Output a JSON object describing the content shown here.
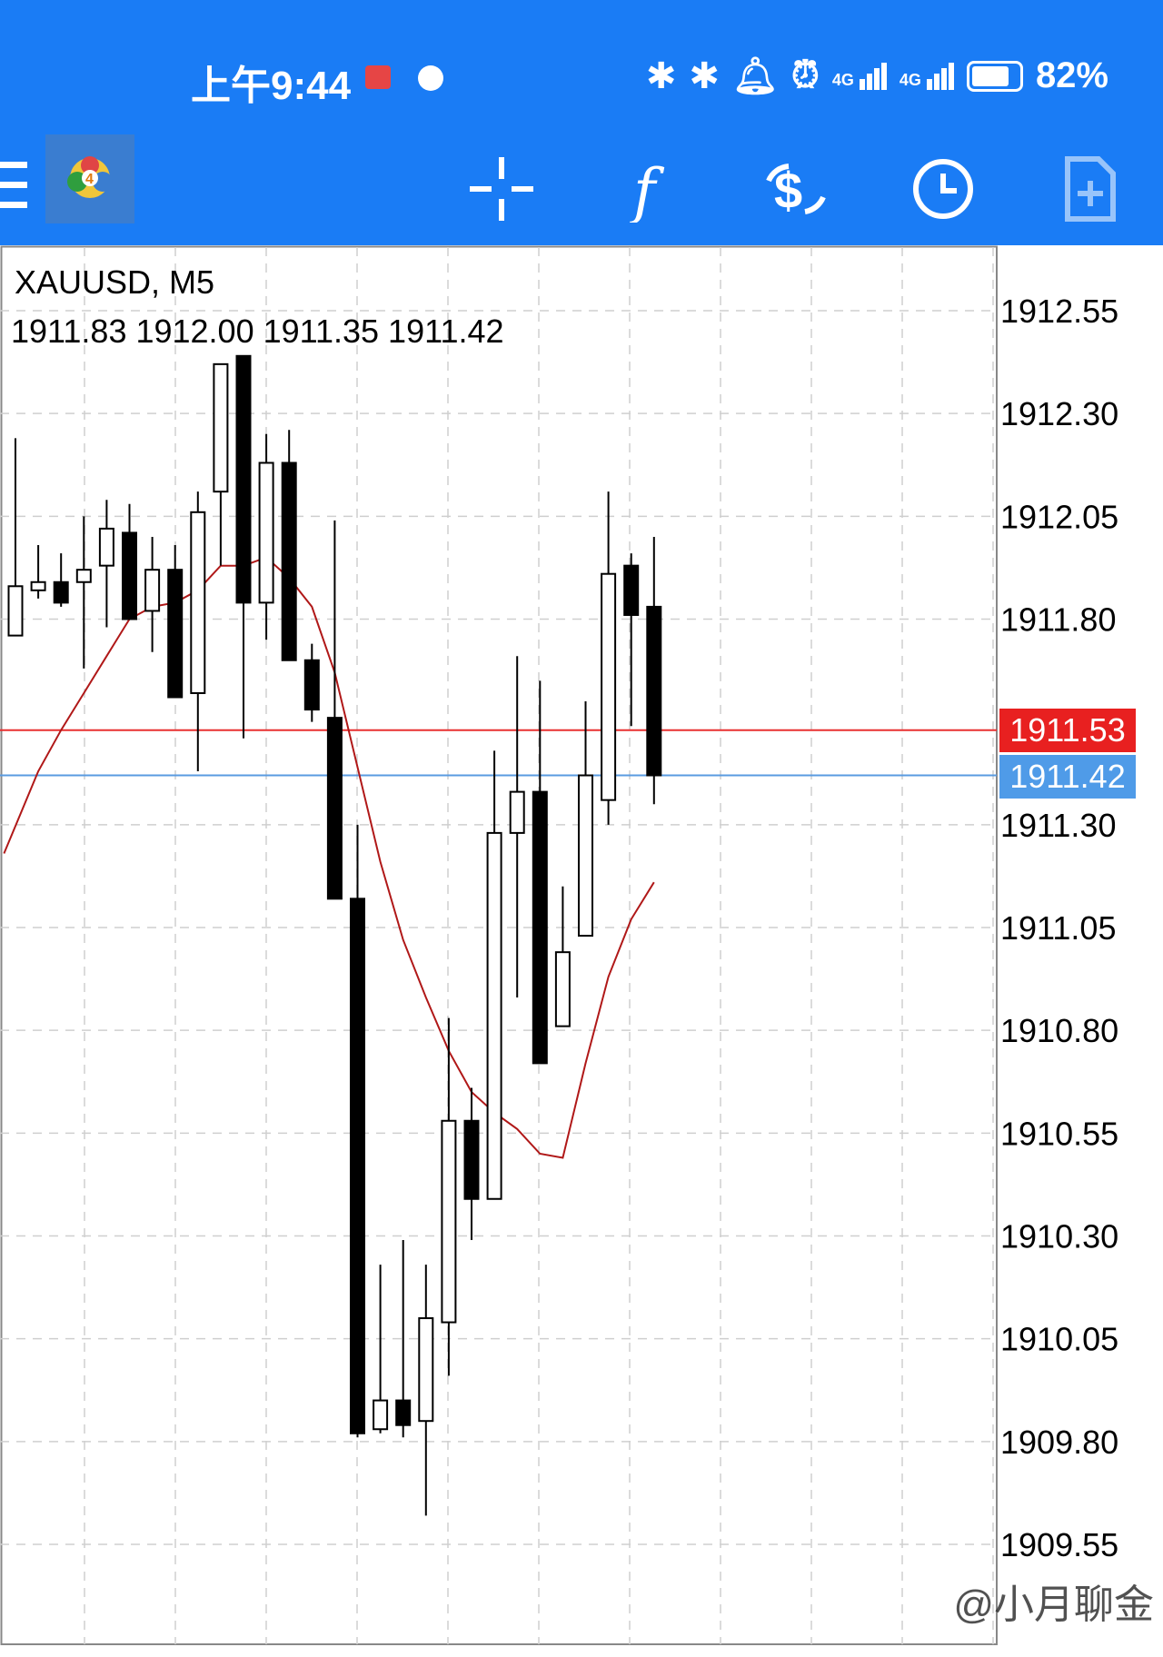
{
  "status_bar": {
    "time": "上午9:44",
    "battery": "82%",
    "network_1": "4G",
    "network_2": "4G"
  },
  "toolbar": {
    "menu_icon": "menu-icon",
    "app_icon": "metatrader-icon",
    "buttons": [
      "crosshair-icon",
      "indicators-icon",
      "symbols-icon",
      "timeframe-clock-icon",
      "new-order-icon"
    ]
  },
  "chart_header": {
    "symbol": "XAUUSD, M5",
    "ohlc": "1911.83 1912.00 1911.35 1911.42"
  },
  "price_tags": {
    "ask": "1911.53",
    "bid": "1911.42"
  },
  "colors": {
    "brand_blue": "#1a7cf5",
    "ask_line": "#e83030",
    "bid_line": "#5a9be0",
    "ma_line": "#b01818"
  },
  "watermark": "@小月聊金",
  "chart_data": {
    "type": "candlestick",
    "symbol": "XAUUSD",
    "timeframe": "M5",
    "ylim": [
      1909.42,
      1912.67
    ],
    "y_ticks": [
      "1912.55",
      "1912.30",
      "1912.05",
      "1911.80",
      "1911.30",
      "1911.05",
      "1910.80",
      "1910.55",
      "1910.30",
      "1910.05",
      "1909.80",
      "1909.55"
    ],
    "grid": true,
    "ask": 1911.53,
    "bid": 1911.42,
    "candles": [
      {
        "o": 1911.76,
        "h": 1912.24,
        "l": 1911.76,
        "c": 1911.88
      },
      {
        "o": 1911.87,
        "h": 1911.98,
        "l": 1911.85,
        "c": 1911.89
      },
      {
        "o": 1911.89,
        "h": 1911.96,
        "l": 1911.83,
        "c": 1911.84
      },
      {
        "o": 1911.89,
        "h": 1912.05,
        "l": 1911.68,
        "c": 1911.92
      },
      {
        "o": 1911.93,
        "h": 1912.09,
        "l": 1911.78,
        "c": 1912.02
      },
      {
        "o": 1912.01,
        "h": 1912.08,
        "l": 1911.8,
        "c": 1911.8
      },
      {
        "o": 1911.82,
        "h": 1912.0,
        "l": 1911.72,
        "c": 1911.92
      },
      {
        "o": 1911.92,
        "h": 1911.98,
        "l": 1911.61,
        "c": 1911.61
      },
      {
        "o": 1911.62,
        "h": 1912.11,
        "l": 1911.43,
        "c": 1912.06
      },
      {
        "o": 1912.11,
        "h": 1912.42,
        "l": 1911.93,
        "c": 1912.42
      },
      {
        "o": 1912.44,
        "h": 1912.44,
        "l": 1911.51,
        "c": 1911.84
      },
      {
        "o": 1911.84,
        "h": 1912.25,
        "l": 1911.75,
        "c": 1912.18
      },
      {
        "o": 1912.18,
        "h": 1912.26,
        "l": 1911.7,
        "c": 1911.7
      },
      {
        "o": 1911.7,
        "h": 1911.74,
        "l": 1911.55,
        "c": 1911.58
      },
      {
        "o": 1911.56,
        "h": 1912.04,
        "l": 1911.12,
        "c": 1911.12
      },
      {
        "o": 1911.12,
        "h": 1911.3,
        "l": 1909.81,
        "c": 1909.82
      },
      {
        "o": 1909.83,
        "h": 1910.23,
        "l": 1909.82,
        "c": 1909.9
      },
      {
        "o": 1909.9,
        "h": 1910.29,
        "l": 1909.81,
        "c": 1909.84
      },
      {
        "o": 1909.85,
        "h": 1910.23,
        "l": 1909.62,
        "c": 1910.1
      },
      {
        "o": 1910.09,
        "h": 1910.83,
        "l": 1909.96,
        "c": 1910.58
      },
      {
        "o": 1910.58,
        "h": 1910.66,
        "l": 1910.29,
        "c": 1910.39
      },
      {
        "o": 1910.39,
        "h": 1911.48,
        "l": 1910.39,
        "c": 1911.28
      },
      {
        "o": 1911.28,
        "h": 1911.71,
        "l": 1910.88,
        "c": 1911.38
      },
      {
        "o": 1911.38,
        "h": 1911.65,
        "l": 1910.72,
        "c": 1910.72
      },
      {
        "o": 1910.81,
        "h": 1911.15,
        "l": 1910.81,
        "c": 1910.99
      },
      {
        "o": 1911.03,
        "h": 1911.6,
        "l": 1911.03,
        "c": 1911.42
      },
      {
        "o": 1911.36,
        "h": 1912.11,
        "l": 1911.3,
        "c": 1911.91
      },
      {
        "o": 1911.93,
        "h": 1911.96,
        "l": 1911.54,
        "c": 1911.81
      },
      {
        "o": 1911.83,
        "h": 1912.0,
        "l": 1911.35,
        "c": 1911.42
      }
    ],
    "ma": [
      {
        "i": -0.5,
        "v": 1911.23
      },
      {
        "i": 1,
        "v": 1911.43
      },
      {
        "i": 2,
        "v": 1911.53
      },
      {
        "i": 3,
        "v": 1911.62
      },
      {
        "i": 4,
        "v": 1911.71
      },
      {
        "i": 5,
        "v": 1911.8
      },
      {
        "i": 6,
        "v": 1911.83
      },
      {
        "i": 7,
        "v": 1911.84
      },
      {
        "i": 8,
        "v": 1911.87
      },
      {
        "i": 9,
        "v": 1911.93
      },
      {
        "i": 10,
        "v": 1911.93
      },
      {
        "i": 11,
        "v": 1911.95
      },
      {
        "i": 12,
        "v": 1911.9
      },
      {
        "i": 13,
        "v": 1911.83
      },
      {
        "i": 14,
        "v": 1911.67
      },
      {
        "i": 15,
        "v": 1911.44
      },
      {
        "i": 16,
        "v": 1911.21
      },
      {
        "i": 17,
        "v": 1911.02
      },
      {
        "i": 18,
        "v": 1910.88
      },
      {
        "i": 19,
        "v": 1910.75
      },
      {
        "i": 20,
        "v": 1910.65
      },
      {
        "i": 21,
        "v": 1910.6
      },
      {
        "i": 22,
        "v": 1910.56
      },
      {
        "i": 23,
        "v": 1910.5
      },
      {
        "i": 24,
        "v": 1910.49
      },
      {
        "i": 25,
        "v": 1910.72
      },
      {
        "i": 26,
        "v": 1910.93
      },
      {
        "i": 27,
        "v": 1911.07
      },
      {
        "i": 28,
        "v": 1911.16
      }
    ]
  }
}
